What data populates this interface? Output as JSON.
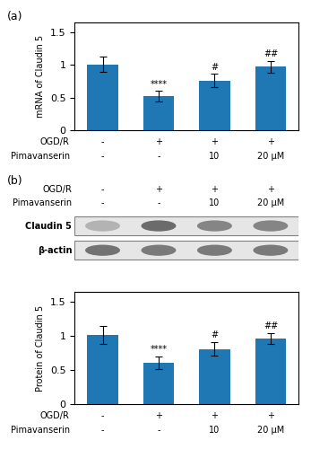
{
  "chart_data": [
    {
      "type": "bar",
      "panel_label": "(a)",
      "ylabel": "mRNA of Claudin 5",
      "values": [
        1.01,
        0.52,
        0.76,
        0.97
      ],
      "errors": [
        0.12,
        0.08,
        0.1,
        0.09
      ],
      "annotations": [
        null,
        "****",
        "#",
        "##"
      ],
      "factors": [
        {
          "name": "OGD/R",
          "levels": [
            "-",
            "+",
            "+",
            "+"
          ]
        },
        {
          "name": "Pimavanserin",
          "levels": [
            "-",
            "-",
            "10",
            "20 μM"
          ]
        }
      ],
      "ylim": [
        0,
        1.65
      ],
      "yticks": [
        0,
        0.5,
        1,
        1.5
      ]
    },
    {
      "type": "blot",
      "panel_label": "(b)",
      "rows": [
        "Claudin 5",
        "β-actin"
      ],
      "intensities": [
        [
          0.3,
          0.58,
          0.48,
          0.48
        ],
        [
          0.55,
          0.52,
          0.52,
          0.52
        ]
      ],
      "factors": [
        {
          "name": "OGD/R",
          "levels": [
            "-",
            "+",
            "+",
            "+"
          ]
        },
        {
          "name": "Pimavanserin",
          "levels": [
            "-",
            "-",
            "10",
            "20 μM"
          ]
        }
      ]
    },
    {
      "type": "bar",
      "ylabel": "Protein of Claudin 5",
      "values": [
        1.02,
        0.61,
        0.81,
        0.96
      ],
      "errors": [
        0.13,
        0.09,
        0.1,
        0.08
      ],
      "annotations": [
        null,
        "****",
        "#",
        "##"
      ],
      "factors": [
        {
          "name": "OGD/R",
          "levels": [
            "-",
            "+",
            "+",
            "+"
          ]
        },
        {
          "name": "Pimavanserin",
          "levels": [
            "-",
            "-",
            "10",
            "20 μM"
          ]
        }
      ],
      "ylim": [
        0,
        1.65
      ],
      "yticks": [
        0,
        0.5,
        1,
        1.5
      ]
    }
  ]
}
